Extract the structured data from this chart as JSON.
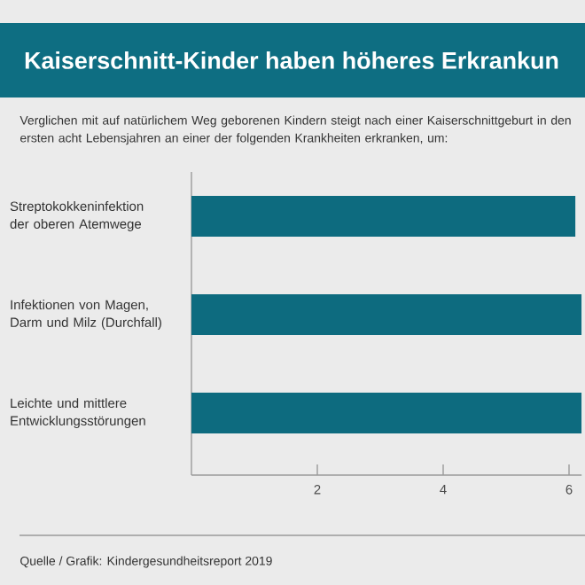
{
  "chart_data": {
    "type": "bar",
    "orientation": "horizontal",
    "title": "Kaiserschnitt-Kinder haben höheres Erkrankun",
    "subtitle": "Verglichen mit auf natürlichem Weg geborenen Kindern steigt nach einer Kaiserschnittgeburt in den ersten acht Lebensjahren an einer der folgenden Krankheiten erkranken, um:",
    "categories": [
      "Streptokokkeninfektion der oberen Atemwege",
      "Infektionen von Magen, Darm und Milz (Durchfall)",
      "Leichte und mittlere Entwicklungsstörungen"
    ],
    "values": [
      6.1,
      6.2,
      6.2
    ],
    "color": "#0d6b7f",
    "xlim": [
      0,
      6.2
    ],
    "xticks": [
      2,
      4,
      6
    ],
    "grid": false,
    "annotations": [
      "Quelle / Grafik: Kindergesundheitsreport 2019"
    ]
  }
}
